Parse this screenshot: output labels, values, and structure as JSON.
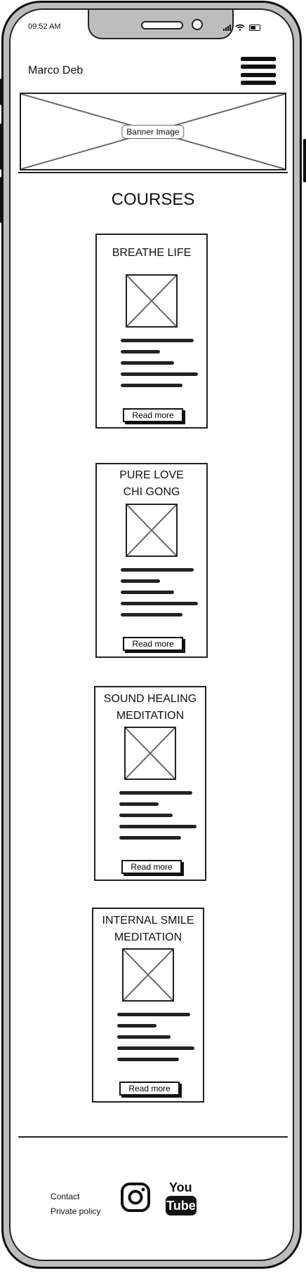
{
  "status_bar": {
    "time": "09:52 AM"
  },
  "header": {
    "brand": "Marco Deb",
    "menu_icon": "hamburger-menu-icon"
  },
  "banner": {
    "label": "Banner Image"
  },
  "courses": {
    "title": "COURSES",
    "items": [
      {
        "title_lines": [
          "BREATHE LIFE"
        ],
        "button": "Read more"
      },
      {
        "title_lines": [
          "PURE LOVE",
          "CHI GONG"
        ],
        "button": "Read more"
      },
      {
        "title_lines": [
          "SOUND HEALING",
          "MEDITATION"
        ],
        "button": "Read more"
      },
      {
        "title_lines": [
          "INTERNAL SMILE",
          "MEDITATION"
        ],
        "button": "Read more"
      }
    ]
  },
  "footer": {
    "links": [
      "Contact",
      "Private policy"
    ],
    "social_icons": [
      "instagram-icon",
      "youtube-icon"
    ],
    "youtube_logo_text": [
      "You",
      "Tube"
    ]
  }
}
